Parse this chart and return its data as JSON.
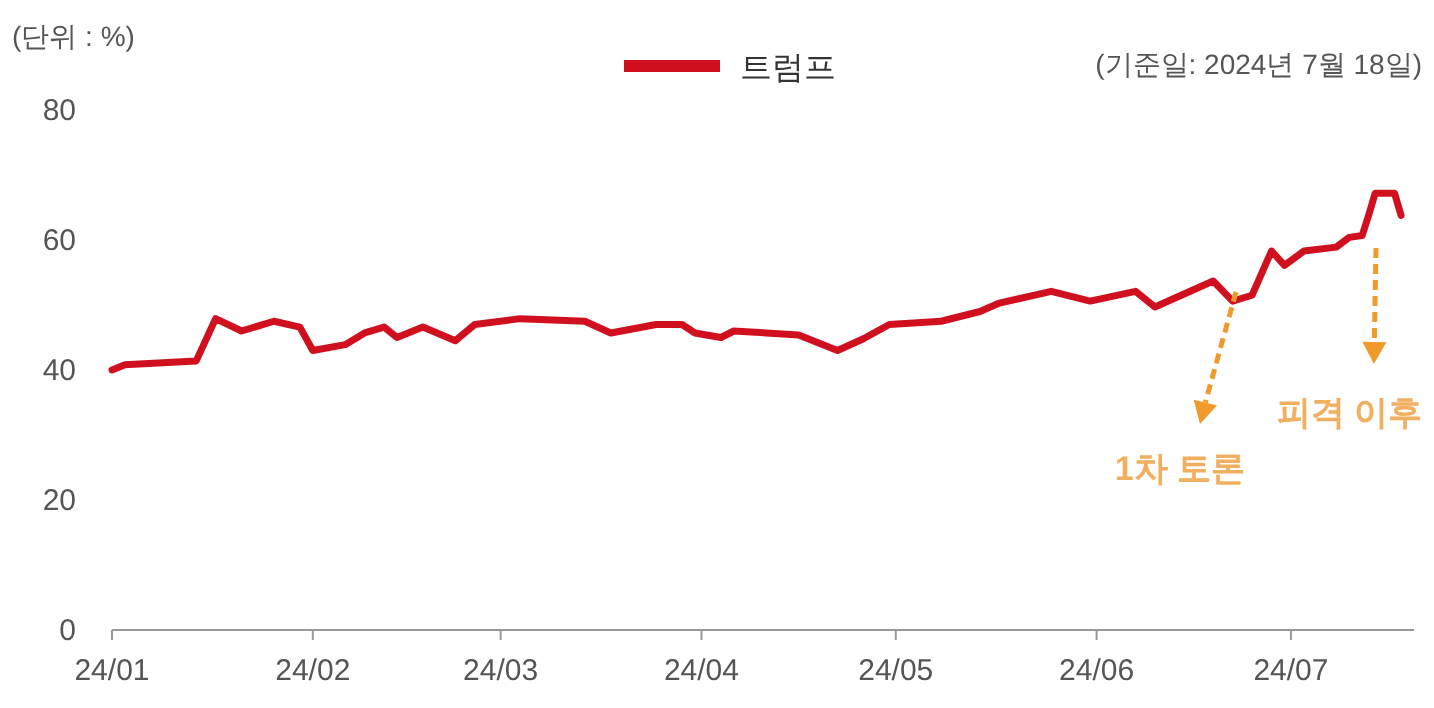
{
  "chart_data": {
    "type": "line",
    "ylabel": "(단위 : %)",
    "legend": "top",
    "annotations": [
      "(기준일: 2024년 7월 18일)",
      "1차 토론",
      "피격 이후"
    ],
    "x": [
      "2024-01-01",
      "2024-01-03",
      "2024-01-14",
      "2024-01-17",
      "2024-01-21",
      "2024-01-26",
      "2024-01-30",
      "2024-02-01",
      "2024-02-06",
      "2024-02-09",
      "2024-02-12",
      "2024-02-14",
      "2024-02-18",
      "2024-02-23",
      "2024-02-26",
      "2024-03-04",
      "2024-03-14",
      "2024-03-18",
      "2024-03-25",
      "2024-03-29",
      "2024-03-31",
      "2024-04-04",
      "2024-04-06",
      "2024-04-16",
      "2024-04-22",
      "2024-04-26",
      "2024-04-30",
      "2024-05-08",
      "2024-05-14",
      "2024-05-17",
      "2024-05-25",
      "2024-05-31",
      "2024-06-07",
      "2024-06-10",
      "2024-06-19",
      "2024-06-22",
      "2024-06-25",
      "2024-06-28",
      "2024-06-30",
      "2024-07-03",
      "2024-07-08",
      "2024-07-10",
      "2024-07-12",
      "2024-07-13",
      "2024-07-14",
      "2024-07-17",
      "2024-07-18"
    ],
    "series": [
      {
        "name": "트럼프",
        "color": "#d0101f",
        "values": [
          40,
          40.8,
          41.4,
          47.9,
          46,
          47.5,
          46.6,
          43,
          43.9,
          45.7,
          46.6,
          45,
          46.6,
          44.5,
          47,
          47.9,
          47.5,
          45.7,
          47,
          47,
          45.7,
          45,
          46,
          45.4,
          43,
          44.8,
          47,
          47.5,
          49,
          50.3,
          52.1,
          50.6,
          52.1,
          49.7,
          53.7,
          50.6,
          51.5,
          58.3,
          56.1,
          58.3,
          58.9,
          60.4,
          60.7,
          63.8,
          67.2,
          67.2,
          63.8
        ]
      }
    ],
    "xlim": [
      "2024-01-01",
      "2024-07-20"
    ],
    "ylim": [
      0,
      80
    ],
    "xticks": [
      {
        "value": "2024-01-01",
        "label": "24/01"
      },
      {
        "value": "2024-02-01",
        "label": "24/02"
      },
      {
        "value": "2024-03-01",
        "label": "24/03"
      },
      {
        "value": "2024-04-01",
        "label": "24/04"
      },
      {
        "value": "2024-05-01",
        "label": "24/05"
      },
      {
        "value": "2024-06-01",
        "label": "24/06"
      },
      {
        "value": "2024-07-01",
        "label": "24/07"
      }
    ],
    "yticks": [
      0,
      20,
      40,
      60,
      80
    ]
  }
}
